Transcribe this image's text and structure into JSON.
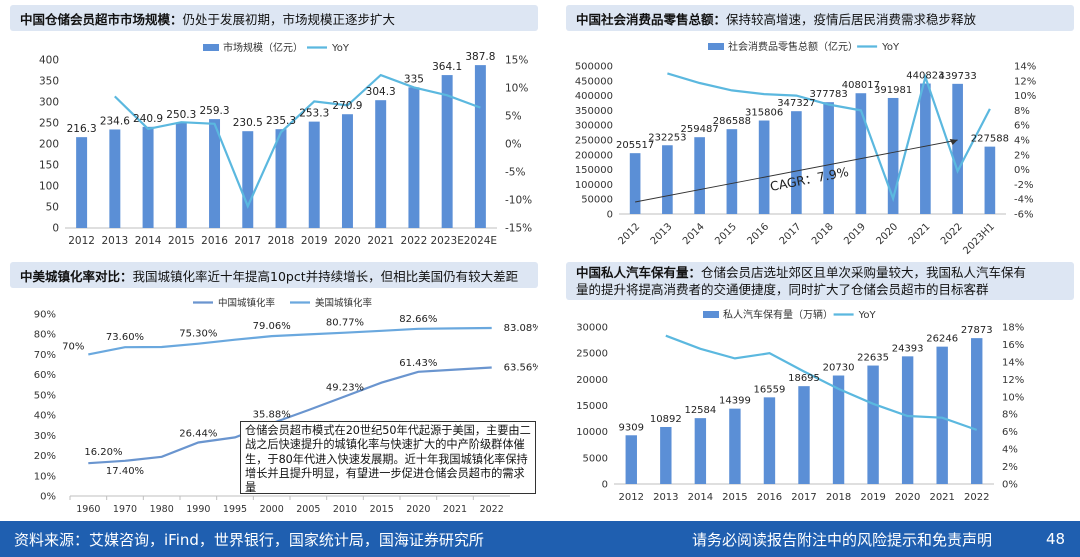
{
  "panels": {
    "p1": {
      "title_bold": "中国仓储会员超市市场规模：",
      "title_rest": "仍处于发展初期，市场规模正逐步扩大"
    },
    "p2": {
      "title_bold": "中国社会消费品零售总额：",
      "title_rest": "保持较高增速，疫情后居民消费需求稳步释放"
    },
    "p3": {
      "title_bold": "中美城镇化率对比：",
      "title_rest": "我国城镇化率近十年提高10pct并持续增长，但相比美国仍有较大差距"
    },
    "p4": {
      "title_bold": "中国私人汽车保有量：",
      "title_rest": "仓储会员店选址郊区且单次采购量较大，我国私人汽车保有",
      "title_line2": "量的提升将提高消费者的交通便捷度，同时扩大了仓储会员超市的目标客群"
    }
  },
  "note": "仓储会员超市模式在20世纪50年代起源于美国，主要由二战之后快速提升的城镇化率与快速扩大的中产阶级群体催生，于80年代进入快速发展期。近十年我国城镇化率保持增长并且提升明显，有望进一步促进仓储会员超市的需求量",
  "footer": {
    "source": "资料来源：艾媒咨询，iFind，世界银行，国家统计局，国海证券研究所",
    "disclaimer": "请务必阅读报告附注中的风险提示和免责声明",
    "page": "48"
  },
  "colors": {
    "bar": "#5b8fd6",
    "line": "#5bb8df",
    "line_cn": "#6a95cf",
    "line_us": "#6aa8de",
    "title_bg": "#dde6f3",
    "footer_bg": "#1f5fb0"
  },
  "chart_data": [
    {
      "type": "bar",
      "categories": [
        "2012",
        "2013",
        "2014",
        "2015",
        "2016",
        "2017",
        "2018",
        "2019",
        "2020",
        "2021",
        "2022",
        "2023E",
        "2024E"
      ],
      "series": [
        {
          "name": "市场规模（亿元）",
          "values": [
            216.3,
            234.6,
            240.9,
            250.3,
            259.3,
            230.5,
            235.3,
            253.3,
            270.9,
            304.3,
            335,
            364.1,
            387.8
          ],
          "labels": [
            "216.3",
            "234.6",
            "240.9",
            "250.3",
            "259.3",
            "230.5",
            "235.3",
            "253.3",
            "270.9",
            "304.3",
            "335",
            "364.1",
            "387.8"
          ]
        },
        {
          "name": "YoY",
          "type": "line",
          "axis": "right",
          "values": [
            null,
            8.5,
            2.7,
            3.9,
            3.6,
            -11.1,
            2.1,
            7.6,
            6.9,
            12.3,
            10.1,
            8.7,
            6.5
          ]
        }
      ],
      "ylim": [
        0,
        400
      ],
      "yticks": [
        "0",
        "50",
        "100",
        "150",
        "200",
        "250",
        "300",
        "350",
        "400"
      ],
      "y2lim": [
        -15,
        15
      ],
      "y2ticks": [
        "-15%",
        "-10%",
        "-5%",
        "0%",
        "5%",
        "10%",
        "15%"
      ],
      "legend": "top"
    },
    {
      "type": "bar",
      "categories": [
        "2012",
        "2013",
        "2014",
        "2015",
        "2016",
        "2017",
        "2018",
        "2019",
        "2020",
        "2021",
        "2022",
        "2023H1"
      ],
      "series": [
        {
          "name": "社会消费品零售总额（亿元）",
          "values": [
            205517,
            232253,
            259487,
            286588,
            315806,
            347327,
            377783,
            408017,
            391981,
            440823,
            439733,
            227588
          ],
          "labels": [
            "205517",
            "232253",
            "259487",
            "286588",
            "315806",
            "347327",
            "377783",
            "408017",
            "391981",
            "440823",
            "439733",
            "227588"
          ]
        },
        {
          "name": "YoY",
          "type": "line",
          "axis": "right",
          "values": [
            null,
            13.0,
            11.7,
            10.7,
            10.2,
            10.0,
            8.8,
            8.0,
            -3.9,
            12.5,
            -0.2,
            8.2
          ]
        }
      ],
      "ylim": [
        0,
        500000
      ],
      "yticks": [
        "0",
        "50000",
        "100000",
        "150000",
        "200000",
        "250000",
        "300000",
        "350000",
        "400000",
        "450000",
        "500000"
      ],
      "y2lim": [
        -6,
        14
      ],
      "y2ticks": [
        "-6%",
        "-4%",
        "-2%",
        "0%",
        "2%",
        "4%",
        "6%",
        "8%",
        "10%",
        "12%",
        "14%"
      ],
      "annotation": "CAGR：7.9%",
      "legend": "top"
    },
    {
      "type": "line",
      "categories": [
        "1960",
        "1970",
        "1980",
        "1990",
        "1995",
        "2000",
        "2005",
        "2010",
        "2015",
        "2020",
        "2021",
        "2022"
      ],
      "series": [
        {
          "name": "中国城镇化率",
          "values": [
            16.2,
            17.4,
            19.4,
            26.44,
            29.0,
            35.88,
            42.5,
            49.23,
            56.1,
            61.43,
            62.5,
            63.56
          ],
          "labels": [
            "16.20%",
            "17.40%",
            null,
            "26.44%",
            null,
            "35.88%",
            null,
            "49.23%",
            null,
            "61.43%",
            null,
            "63.56%"
          ]
        },
        {
          "name": "美国城镇化率",
          "values": [
            70.0,
            73.6,
            73.7,
            75.3,
            77.3,
            79.06,
            79.9,
            80.77,
            81.7,
            82.66,
            82.9,
            83.08
          ],
          "labels": [
            "70%",
            "73.60%",
            null,
            "75.30%",
            null,
            "79.06%",
            null,
            "80.77%",
            null,
            "82.66%",
            null,
            "83.08%"
          ]
        }
      ],
      "ylim": [
        0,
        90
      ],
      "yticks": [
        "0%",
        "10%",
        "20%",
        "30%",
        "40%",
        "50%",
        "60%",
        "70%",
        "80%",
        "90%"
      ],
      "legend": "top"
    },
    {
      "type": "bar",
      "categories": [
        "2012",
        "2013",
        "2014",
        "2015",
        "2016",
        "2017",
        "2018",
        "2019",
        "2020",
        "2021",
        "2022"
      ],
      "series": [
        {
          "name": "私人汽车保有量（万辆）",
          "values": [
            9309,
            10892,
            12584,
            14399,
            16559,
            18695,
            20730,
            22635,
            24393,
            26246,
            27873
          ],
          "labels": [
            "9309",
            "10892",
            "12584",
            "14399",
            "16559",
            "18695",
            "20730",
            "22635",
            "24393",
            "26246",
            "27873"
          ]
        },
        {
          "name": "YoY",
          "type": "line",
          "axis": "right",
          "values": [
            null,
            17.0,
            15.5,
            14.4,
            15.0,
            12.9,
            10.9,
            9.2,
            7.8,
            7.6,
            6.2
          ]
        }
      ],
      "ylim": [
        0,
        30000
      ],
      "yticks": [
        "0",
        "5000",
        "10000",
        "15000",
        "20000",
        "25000",
        "30000"
      ],
      "y2lim": [
        0,
        18
      ],
      "y2ticks": [
        "0%",
        "2%",
        "4%",
        "6%",
        "8%",
        "10%",
        "12%",
        "14%",
        "16%",
        "18%"
      ],
      "legend": "top"
    }
  ]
}
